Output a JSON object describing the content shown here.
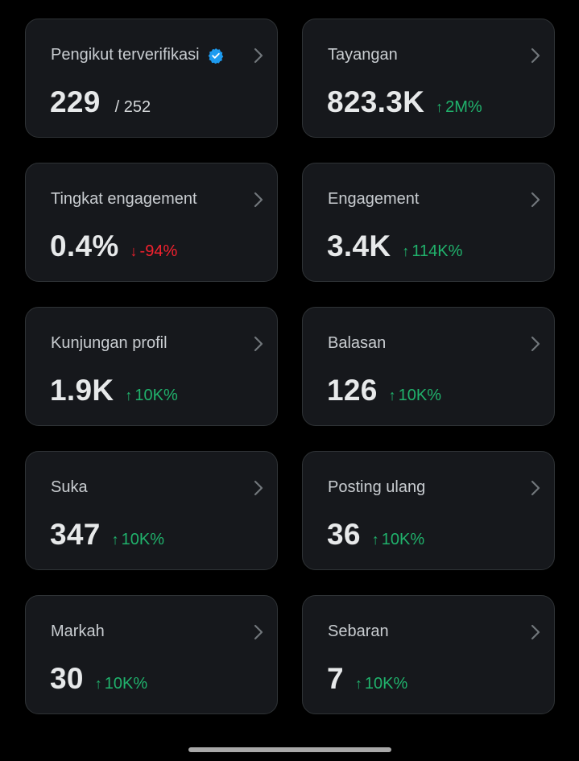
{
  "cards": [
    {
      "title": "Pengikut terverifikasi",
      "value": "229",
      "denominator": "/ 252",
      "change": "",
      "direction": "none",
      "verified": true
    },
    {
      "title": "Tayangan",
      "value": "823.3K",
      "denominator": "",
      "change": "2M%",
      "direction": "up",
      "verified": false
    },
    {
      "title": "Tingkat engagement",
      "value": "0.4%",
      "denominator": "",
      "change": "-94%",
      "direction": "down",
      "verified": false
    },
    {
      "title": "Engagement",
      "value": "3.4K",
      "denominator": "",
      "change": "114K%",
      "direction": "up",
      "verified": false
    },
    {
      "title": "Kunjungan profil",
      "value": "1.9K",
      "denominator": "",
      "change": "10K%",
      "direction": "up",
      "verified": false
    },
    {
      "title": "Balasan",
      "value": "126",
      "denominator": "",
      "change": "10K%",
      "direction": "up",
      "verified": false
    },
    {
      "title": "Suka",
      "value": "347",
      "denominator": "",
      "change": "10K%",
      "direction": "up",
      "verified": false
    },
    {
      "title": "Posting ulang",
      "value": "36",
      "denominator": "",
      "change": "10K%",
      "direction": "up",
      "verified": false
    },
    {
      "title": "Markah",
      "value": "30",
      "denominator": "",
      "change": "10K%",
      "direction": "up",
      "verified": false
    },
    {
      "title": "Sebaran",
      "value": "7",
      "denominator": "",
      "change": "10K%",
      "direction": "up",
      "verified": false
    }
  ],
  "icons": {
    "verified": "verified-badge-icon",
    "chevron": "chevron-right-icon",
    "arrow_up": "arrow-up-icon",
    "arrow_down": "arrow-down-icon"
  },
  "colors": {
    "background": "#000000",
    "card_background": "#16181c",
    "card_border": "#2f3336",
    "positive": "#20b26c",
    "negative": "#f4212e",
    "verified_badge": "#1d9bf0"
  }
}
